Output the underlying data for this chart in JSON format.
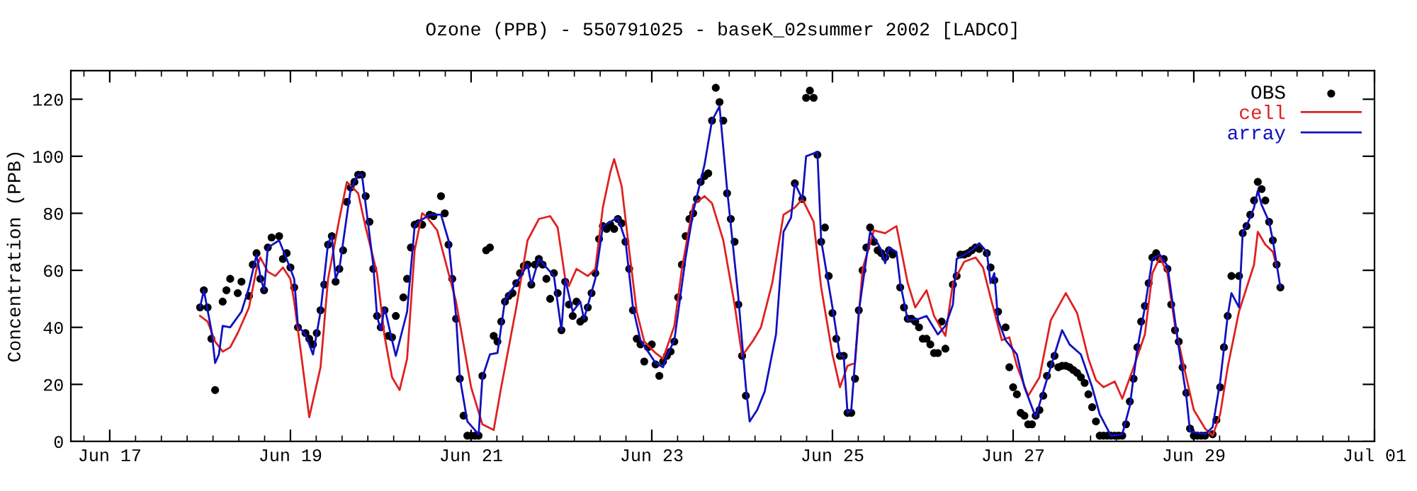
{
  "chart_data": {
    "type": "line",
    "title": "Ozone (PPB) - 550791025 - baseK_02summer 2002 [LADCO]",
    "ylabel": "Concentration (PPB)",
    "xlim": [
      "2002-06-16T13:40",
      "2002-07-01T00:00"
    ],
    "ylim": [
      0,
      130
    ],
    "xticks": [
      {
        "value": "2002-06-17",
        "label": "Jun 17"
      },
      {
        "value": "2002-06-19",
        "label": "Jun 19"
      },
      {
        "value": "2002-06-21",
        "label": "Jun 21"
      },
      {
        "value": "2002-06-23",
        "label": "Jun 23"
      },
      {
        "value": "2002-06-25",
        "label": "Jun 25"
      },
      {
        "value": "2002-06-27",
        "label": "Jun 27"
      },
      {
        "value": "2002-06-29",
        "label": "Jun 29"
      },
      {
        "value": "2002-07-01",
        "label": "Jul 01"
      }
    ],
    "yticks": [
      0,
      20,
      40,
      60,
      80,
      100,
      120
    ],
    "legend": "top right",
    "series": [
      {
        "name": "OBS",
        "type": "scatter",
        "marker": "circle",
        "color": "#000000",
        "x": [
          "2002-06-18T00:00",
          "2002-06-18T01:00",
          "2002-06-18T02:00",
          "2002-06-18T03:00",
          "2002-06-18T04:00",
          "2002-06-18T06:00",
          "2002-06-18T07:00",
          "2002-06-18T08:00",
          "2002-06-18T10:00",
          "2002-06-18T11:00",
          "2002-06-18T13:00",
          "2002-06-18T14:00",
          "2002-06-18T15:00",
          "2002-06-18T16:00",
          "2002-06-18T17:00",
          "2002-06-18T18:00",
          "2002-06-18T19:00",
          "2002-06-18T21:00",
          "2002-06-18T22:00",
          "2002-06-18T23:00",
          "2002-06-19T00:00",
          "2002-06-19T01:00",
          "2002-06-19T02:00",
          "2002-06-19T04:00",
          "2002-06-19T05:00",
          "2002-06-19T06:00",
          "2002-06-19T07:00",
          "2002-06-19T08:00",
          "2002-06-19T09:00",
          "2002-06-19T10:00",
          "2002-06-19T11:00",
          "2002-06-19T12:00",
          "2002-06-19T13:00",
          "2002-06-19T14:00",
          "2002-06-19T15:00",
          "2002-06-19T16:00",
          "2002-06-19T17:00",
          "2002-06-19T18:00",
          "2002-06-19T19:00",
          "2002-06-19T20:00",
          "2002-06-19T21:00",
          "2002-06-19T22:00",
          "2002-06-19T23:00",
          "2002-06-20T00:00",
          "2002-06-20T01:00",
          "2002-06-20T02:00",
          "2002-06-20T03:00",
          "2002-06-20T04:00",
          "2002-06-20T06:00",
          "2002-06-20T07:00",
          "2002-06-20T08:00",
          "2002-06-20T09:00",
          "2002-06-20T10:00",
          "2002-06-20T11:00",
          "2002-06-20T13:00",
          "2002-06-20T14:00",
          "2002-06-20T16:00",
          "2002-06-20T17:00",
          "2002-06-20T18:00",
          "2002-06-20T19:00",
          "2002-06-20T20:00",
          "2002-06-20T21:00",
          "2002-06-20T22:00",
          "2002-06-20T23:00",
          "2002-06-21T00:00",
          "2002-06-21T01:00",
          "2002-06-21T02:00",
          "2002-06-21T03:00",
          "2002-06-21T04:00",
          "2002-06-21T05:00",
          "2002-06-21T06:00",
          "2002-06-21T07:00",
          "2002-06-21T08:00",
          "2002-06-21T09:00",
          "2002-06-21T10:00",
          "2002-06-21T11:00",
          "2002-06-21T12:00",
          "2002-06-21T13:00",
          "2002-06-21T14:00",
          "2002-06-21T15:00",
          "2002-06-21T16:00",
          "2002-06-21T17:00",
          "2002-06-21T18:00",
          "2002-06-21T19:00",
          "2002-06-21T20:00",
          "2002-06-21T21:00",
          "2002-06-21T22:00",
          "2002-06-21T23:00",
          "2002-06-22T00:00",
          "2002-06-22T01:00",
          "2002-06-22T02:00",
          "2002-06-22T03:00",
          "2002-06-22T04:00",
          "2002-06-22T05:00",
          "2002-06-22T06:00",
          "2002-06-22T07:00",
          "2002-06-22T08:00",
          "2002-06-22T09:00",
          "2002-06-22T10:00",
          "2002-06-22T11:00",
          "2002-06-22T12:00",
          "2002-06-22T13:00",
          "2002-06-22T14:00",
          "2002-06-22T15:00",
          "2002-06-22T16:00",
          "2002-06-22T17:00",
          "2002-06-22T18:00",
          "2002-06-22T19:00",
          "2002-06-22T20:00",
          "2002-06-22T21:00",
          "2002-06-22T22:00",
          "2002-06-22T23:00",
          "2002-06-23T00:00",
          "2002-06-23T01:00",
          "2002-06-23T02:00",
          "2002-06-23T03:00",
          "2002-06-23T04:00",
          "2002-06-23T05:00",
          "2002-06-23T06:00",
          "2002-06-23T07:00",
          "2002-06-23T08:00",
          "2002-06-23T09:00",
          "2002-06-23T10:00",
          "2002-06-23T11:00",
          "2002-06-23T12:00",
          "2002-06-23T13:00",
          "2002-06-23T14:00",
          "2002-06-23T15:00",
          "2002-06-23T16:00",
          "2002-06-23T17:00",
          "2002-06-23T18:00",
          "2002-06-23T19:00",
          "2002-06-23T20:00",
          "2002-06-23T21:00",
          "2002-06-23T22:00",
          "2002-06-23T23:00",
          "2002-06-24T00:00",
          "2002-06-24T01:00",
          "2002-06-24T14:00",
          "2002-06-24T16:00",
          "2002-06-24T17:00",
          "2002-06-24T18:00",
          "2002-06-24T19:00",
          "2002-06-24T20:00",
          "2002-06-24T21:00",
          "2002-06-24T22:00",
          "2002-06-24T23:00",
          "2002-06-25T00:00",
          "2002-06-25T01:00",
          "2002-06-25T02:00",
          "2002-06-25T03:00",
          "2002-06-25T04:00",
          "2002-06-25T05:00",
          "2002-06-25T06:00",
          "2002-06-25T07:00",
          "2002-06-25T08:00",
          "2002-06-25T09:00",
          "2002-06-25T10:00",
          "2002-06-25T11:00",
          "2002-06-25T12:00",
          "2002-06-25T13:00",
          "2002-06-25T14:00",
          "2002-06-25T15:00",
          "2002-06-25T16:00",
          "2002-06-25T18:00",
          "2002-06-25T19:00",
          "2002-06-25T20:00",
          "2002-06-25T21:00",
          "2002-06-25T22:00",
          "2002-06-25T23:00",
          "2002-06-26T00:00",
          "2002-06-26T01:00",
          "2002-06-26T02:00",
          "2002-06-26T03:00",
          "2002-06-26T04:00",
          "2002-06-26T05:00",
          "2002-06-26T06:00",
          "2002-06-26T08:00",
          "2002-06-26T09:00",
          "2002-06-26T10:00",
          "2002-06-26T11:00",
          "2002-06-26T12:00",
          "2002-06-26T13:00",
          "2002-06-26T14:00",
          "2002-06-26T15:00",
          "2002-06-26T17:00",
          "2002-06-26T18:00",
          "2002-06-26T19:00",
          "2002-06-26T20:00",
          "2002-06-26T22:00",
          "2002-06-26T23:00",
          "2002-06-27T00:00",
          "2002-06-27T01:00",
          "2002-06-27T02:00",
          "2002-06-27T03:00",
          "2002-06-27T04:00",
          "2002-06-27T05:00",
          "2002-06-27T06:00",
          "2002-06-27T07:00",
          "2002-06-27T08:00",
          "2002-06-27T09:00",
          "2002-06-27T10:00",
          "2002-06-27T11:00",
          "2002-06-27T12:00",
          "2002-06-27T13:00",
          "2002-06-27T14:00",
          "2002-06-27T15:00",
          "2002-06-27T16:00",
          "2002-06-27T17:00",
          "2002-06-27T18:00",
          "2002-06-27T19:00",
          "2002-06-27T20:00",
          "2002-06-27T21:00",
          "2002-06-27T22:00",
          "2002-06-27T23:00",
          "2002-06-28T00:00",
          "2002-06-28T01:00",
          "2002-06-28T02:00",
          "2002-06-28T03:00",
          "2002-06-28T04:00",
          "2002-06-28T05:00",
          "2002-06-28T06:00",
          "2002-06-28T07:00",
          "2002-06-28T08:00",
          "2002-06-28T09:00",
          "2002-06-28T10:00",
          "2002-06-28T11:00",
          "2002-06-28T12:00",
          "2002-06-28T13:00",
          "2002-06-28T14:00",
          "2002-06-28T15:00",
          "2002-06-28T16:00",
          "2002-06-28T17:00",
          "2002-06-28T18:00",
          "2002-06-28T19:00",
          "2002-06-28T20:00",
          "2002-06-28T21:00",
          "2002-06-28T22:00",
          "2002-06-28T23:00",
          "2002-06-29T00:00",
          "2002-06-29T01:00",
          "2002-06-29T02:00",
          "2002-06-29T03:00",
          "2002-06-29T05:00",
          "2002-06-29T06:00",
          "2002-06-29T07:00",
          "2002-06-29T08:00",
          "2002-06-29T09:00",
          "2002-06-29T10:00",
          "2002-06-29T12:00",
          "2002-06-29T13:00",
          "2002-06-29T14:00",
          "2002-06-29T15:00",
          "2002-06-29T16:00",
          "2002-06-29T17:00",
          "2002-06-29T18:00",
          "2002-06-29T19:00",
          "2002-06-29T20:00",
          "2002-06-29T21:00",
          "2002-06-29T22:00",
          "2002-06-29T23:00"
        ],
        "values": [
          47,
          53,
          47,
          36,
          18,
          49,
          53,
          57,
          52,
          56,
          51,
          62,
          66,
          57,
          53,
          68,
          71.5,
          72,
          64,
          66,
          61,
          54,
          40,
          38,
          36,
          34,
          38,
          46,
          55,
          69,
          72,
          56,
          60.5,
          67,
          84,
          89,
          91,
          93.5,
          93.5,
          86,
          77,
          60.5,
          44,
          40,
          46,
          37,
          36.5,
          44,
          50.5,
          57,
          68,
          76,
          76.5,
          76,
          79.5,
          79,
          86,
          80,
          69,
          57,
          43,
          22,
          9,
          2,
          2,
          2,
          2,
          23,
          67,
          68,
          37,
          35,
          42,
          49,
          51,
          52,
          55.5,
          59,
          61.5,
          62,
          55,
          62,
          64,
          62,
          57,
          50,
          59,
          52,
          39,
          56,
          48,
          44,
          49,
          42,
          43,
          47,
          52,
          59,
          71,
          75.5,
          74.5,
          76,
          74.5,
          78,
          76.5,
          70,
          60.5,
          46,
          36,
          34,
          28,
          33,
          34,
          27,
          23,
          28,
          30,
          31.5,
          35,
          50.5,
          62,
          72,
          78,
          80,
          85,
          91,
          93,
          94,
          112.5,
          124,
          119,
          112.5,
          87,
          78,
          70,
          48,
          30,
          16,
          90.5,
          85,
          120.5,
          123,
          120.5,
          100.5,
          70,
          75,
          58,
          45,
          36,
          30,
          30,
          10,
          10,
          22,
          46,
          60,
          68,
          75,
          70,
          67,
          66,
          64.5,
          67,
          65.5,
          54,
          47,
          43,
          43,
          42,
          40,
          36,
          36,
          34,
          31,
          31,
          42,
          32.5,
          55,
          58,
          65.5,
          65.5,
          66,
          67,
          68,
          67.5,
          66,
          61,
          56.5,
          45.5,
          40,
          26,
          19,
          16.5,
          10,
          9,
          6,
          6,
          9,
          11,
          16,
          23,
          27,
          30,
          26,
          26.5,
          26.5,
          26,
          25,
          24,
          22.5,
          20.5,
          16.5,
          12,
          7,
          2,
          2,
          2,
          2,
          2,
          2,
          2,
          6,
          14,
          22,
          33,
          42,
          47.5,
          55.5,
          64.5,
          66,
          64,
          64,
          60.5,
          48,
          39,
          35,
          26,
          17,
          4.5,
          2,
          2,
          2,
          2,
          2.5,
          7.5,
          19,
          33,
          44,
          58,
          58,
          73,
          75.5,
          79.5,
          84.5,
          91,
          88.5,
          84.5,
          77,
          70.5,
          62,
          54
        ]
      },
      {
        "name": "cell",
        "color": "#e02020",
        "x": [
          "2002-06-18T00:00",
          "2002-06-18T02:00",
          "2002-06-18T04:00",
          "2002-06-18T06:00",
          "2002-06-18T08:00",
          "2002-06-18T10:00",
          "2002-06-18T13:00",
          "2002-06-18T15:00",
          "2002-06-18T16:00",
          "2002-06-18T18:00",
          "2002-06-18T20:00",
          "2002-06-18T22:00",
          "2002-06-19T00:00",
          "2002-06-19T01:00",
          "2002-06-19T03:00",
          "2002-06-19T05:00",
          "2002-06-19T08:00",
          "2002-06-19T10:00",
          "2002-06-19T13:00",
          "2002-06-19T15:00",
          "2002-06-19T18:00",
          "2002-06-19T20:00",
          "2002-06-19T23:00",
          "2002-06-20T01:00",
          "2002-06-20T03:00",
          "2002-06-20T05:00",
          "2002-06-20T07:00",
          "2002-06-20T09:00",
          "2002-06-20T11:00",
          "2002-06-20T12:00",
          "2002-06-20T15:00",
          "2002-06-20T17:00",
          "2002-06-20T20:00",
          "2002-06-20T22:00",
          "2002-06-21T00:00",
          "2002-06-21T03:00",
          "2002-06-21T06:00",
          "2002-06-21T08:00",
          "2002-06-21T12:00",
          "2002-06-21T15:00",
          "2002-06-21T18:00",
          "2002-06-21T21:00",
          "2002-06-21T23:00",
          "2002-06-22T01:00",
          "2002-06-22T02:00",
          "2002-06-22T04:00",
          "2002-06-22T07:00",
          "2002-06-22T09:00",
          "2002-06-22T11:00",
          "2002-06-22T13:00",
          "2002-06-22T14:00",
          "2002-06-22T16:00",
          "2002-06-22T18:00",
          "2002-06-22T20:00",
          "2002-06-22T22:00",
          "2002-06-23T01:00",
          "2002-06-23T03:00",
          "2002-06-23T06:00",
          "2002-06-23T08:00",
          "2002-06-23T11:00",
          "2002-06-23T14:00",
          "2002-06-23T16:00",
          "2002-06-23T19:00",
          "2002-06-23T22:00",
          "2002-06-24T00:00",
          "2002-06-24T03:00",
          "2002-06-24T05:00",
          "2002-06-24T08:00",
          "2002-06-24T11:00",
          "2002-06-24T14:00",
          "2002-06-24T16:00",
          "2002-06-24T19:00",
          "2002-06-24T21:00",
          "2002-06-25T00:00",
          "2002-06-25T02:00",
          "2002-06-25T04:00",
          "2002-06-25T06:00",
          "2002-06-25T08:00",
          "2002-06-25T11:00",
          "2002-06-25T14:00",
          "2002-06-25T17:00",
          "2002-06-25T20:00",
          "2002-06-25T22:00",
          "2002-06-26T01:00",
          "2002-06-26T03:00",
          "2002-06-26T06:00",
          "2002-06-26T08:00",
          "2002-06-26T11:00",
          "2002-06-26T14:00",
          "2002-06-26T16:00",
          "2002-06-26T18:00",
          "2002-06-26T21:00",
          "2002-06-26T23:00",
          "2002-06-27T01:00",
          "2002-06-27T04:00",
          "2002-06-27T07:00",
          "2002-06-27T10:00",
          "2002-06-27T14:00",
          "2002-06-27T17:00",
          "2002-06-27T20:00",
          "2002-06-27T22:00",
          "2002-06-28T00:00",
          "2002-06-28T03:00",
          "2002-06-28T05:00",
          "2002-06-28T08:00",
          "2002-06-28T11:00",
          "2002-06-28T13:00",
          "2002-06-28T15:00",
          "2002-06-28T17:00",
          "2002-06-28T19:00",
          "2002-06-28T22:00",
          "2002-06-29T00:00",
          "2002-06-29T03:00",
          "2002-06-29T05:00",
          "2002-06-29T07:00",
          "2002-06-29T09:00",
          "2002-06-29T12:00",
          "2002-06-29T16:00",
          "2002-06-29T17:00",
          "2002-06-29T19:00",
          "2002-06-29T21:00",
          "2002-06-29T22:00"
        ],
        "values": [
          44,
          42,
          35,
          31.5,
          33,
          38,
          47,
          60.5,
          64.5,
          59.5,
          58,
          61,
          57,
          49,
          29,
          8.5,
          26,
          57,
          78,
          91,
          87,
          75,
          59,
          37,
          22.5,
          18,
          29,
          67,
          80,
          79,
          74,
          64,
          49,
          34,
          19,
          6,
          4,
          19,
          47,
          70.5,
          78,
          79,
          75,
          57,
          54.5,
          60.5,
          58,
          60.5,
          82,
          94.5,
          99,
          89.5,
          67,
          45.5,
          35,
          31,
          29,
          40.5,
          60.5,
          83,
          86,
          83.5,
          70.5,
          48,
          30,
          35.5,
          40,
          55.5,
          79.5,
          82,
          85,
          77,
          54,
          30.5,
          19,
          26.5,
          27.5,
          60.5,
          74,
          73,
          75.5,
          55.5,
          47,
          53,
          44,
          37,
          55.5,
          63,
          64.5,
          61,
          50.5,
          35.5,
          36.5,
          26.5,
          16,
          22.5,
          42.5,
          52,
          45,
          29,
          21.5,
          19,
          21,
          15,
          26,
          37.5,
          59,
          64.5,
          59,
          40.5,
          22.5,
          11,
          4.5,
          2,
          9.5,
          26,
          45.5,
          62,
          73.5,
          69,
          66.5,
          61.5
        ]
      },
      {
        "name": "array",
        "color": "#1010c0",
        "x": [
          "2002-06-18T00:00",
          "2002-06-18T01:00",
          "2002-06-18T03:00",
          "2002-06-18T04:00",
          "2002-06-18T05:00",
          "2002-06-18T06:00",
          "2002-06-18T08:00",
          "2002-06-18T11:00",
          "2002-06-18T13:00",
          "2002-06-18T15:00",
          "2002-06-18T16:00",
          "2002-06-18T17:00",
          "2002-06-18T18:00",
          "2002-06-18T21:00",
          "2002-06-18T23:00",
          "2002-06-19T01:00",
          "2002-06-19T02:00",
          "2002-06-19T04:00",
          "2002-06-19T06:00",
          "2002-06-19T08:00",
          "2002-06-19T10:00",
          "2002-06-19T11:00",
          "2002-06-19T12:00",
          "2002-06-19T13:00",
          "2002-06-19T16:00",
          "2002-06-19T18:00",
          "2002-06-19T19:00",
          "2002-06-19T22:00",
          "2002-06-19T23:00",
          "2002-06-20T00:00",
          "2002-06-20T01:00",
          "2002-06-20T03:00",
          "2002-06-20T04:00",
          "2002-06-20T07:00",
          "2002-06-20T09:00",
          "2002-06-20T10:00",
          "2002-06-20T13:00",
          "2002-06-20T16:00",
          "2002-06-20T18:00",
          "2002-06-20T20:00",
          "2002-06-20T21:00",
          "2002-06-20T23:00",
          "2002-06-21T02:00",
          "2002-06-21T03:00",
          "2002-06-21T05:00",
          "2002-06-21T07:00",
          "2002-06-21T09:00",
          "2002-06-21T12:00",
          "2002-06-21T15:00",
          "2002-06-21T16:00",
          "2002-06-21T18:00",
          "2002-06-21T22:00",
          "2002-06-22T00:00",
          "2002-06-22T01:00",
          "2002-06-22T03:00",
          "2002-06-22T05:00",
          "2002-06-22T06:00",
          "2002-06-22T09:00",
          "2002-06-22T11:00",
          "2002-06-22T13:00",
          "2002-06-22T15:00",
          "2002-06-22T17:00",
          "2002-06-22T19:00",
          "2002-06-22T21:00",
          "2002-06-23T01:00",
          "2002-06-23T03:00",
          "2002-06-23T04:00",
          "2002-06-23T06:00",
          "2002-06-23T09:00",
          "2002-06-23T11:00",
          "2002-06-23T14:00",
          "2002-06-23T16:00",
          "2002-06-23T18:00",
          "2002-06-23T20:00",
          "2002-06-23T23:00",
          "2002-06-24T01:00",
          "2002-06-24T02:00",
          "2002-06-24T04:00",
          "2002-06-24T06:00",
          "2002-06-24T09:00",
          "2002-06-24T11:00",
          "2002-06-24T13:00",
          "2002-06-24T14:00",
          "2002-06-24T16:00",
          "2002-06-24T17:00",
          "2002-06-24T20:00",
          "2002-06-24T21:00",
          "2002-06-25T00:00",
          "2002-06-25T02:00",
          "2002-06-25T03:00",
          "2002-06-25T04:00",
          "2002-06-25T05:00",
          "2002-06-25T07:00",
          "2002-06-25T10:00",
          "2002-06-25T12:00",
          "2002-06-25T13:00",
          "2002-06-25T14:00",
          "2002-06-25T15:00",
          "2002-06-25T17:00",
          "2002-06-25T18:00",
          "2002-06-25T20:00",
          "2002-06-25T23:00",
          "2002-06-26T01:00",
          "2002-06-26T04:00",
          "2002-06-26T06:00",
          "2002-06-26T08:00",
          "2002-06-26T09:00",
          "2002-06-26T13:00",
          "2002-06-26T15:00",
          "2002-06-26T17:00",
          "2002-06-26T18:00",
          "2002-06-26T19:00",
          "2002-06-26T20:00",
          "2002-06-26T22:00",
          "2002-06-27T01:00",
          "2002-06-27T03:00",
          "2002-06-27T06:00",
          "2002-06-27T08:00",
          "2002-06-27T11:00",
          "2002-06-27T13:00",
          "2002-06-27T15:00",
          "2002-06-27T18:00",
          "2002-06-27T21:00",
          "2002-06-27T23:00",
          "2002-06-28T02:00",
          "2002-06-28T05:00",
          "2002-06-28T07:00",
          "2002-06-28T09:00",
          "2002-06-28T11:00",
          "2002-06-28T13:00",
          "2002-06-28T15:00",
          "2002-06-28T17:00",
          "2002-06-28T19:00",
          "2002-06-28T20:00",
          "2002-06-28T22:00",
          "2002-06-28T23:00",
          "2002-06-29T03:00",
          "2002-06-29T05:00",
          "2002-06-29T07:00",
          "2002-06-29T09:00",
          "2002-06-29T10:00",
          "2002-06-29T12:00",
          "2002-06-29T13:00",
          "2002-06-29T14:00",
          "2002-06-29T16:00",
          "2002-06-29T17:00",
          "2002-06-29T18:00",
          "2002-06-29T20:00",
          "2002-06-29T21:00",
          "2002-06-29T23:00"
        ],
        "values": [
          47,
          53,
          39,
          27.5,
          30.5,
          40.5,
          40,
          45.5,
          54,
          65.5,
          58,
          53,
          68,
          70.5,
          64,
          57,
          40.5,
          37.5,
          30.5,
          45.5,
          69.5,
          72,
          57,
          60.5,
          88.5,
          93.5,
          93.5,
          62,
          44,
          39,
          47,
          35.5,
          30,
          45.5,
          75.5,
          77,
          79.5,
          79.5,
          70.5,
          44,
          22.5,
          7,
          2.5,
          22.5,
          30.5,
          31,
          49.5,
          55.5,
          62,
          55,
          64,
          58,
          39,
          57,
          45.5,
          49,
          43,
          57,
          75.5,
          77,
          78.5,
          70.5,
          47,
          35.5,
          27.5,
          26,
          30,
          35.5,
          64.5,
          80.5,
          97,
          112.5,
          117.5,
          88.5,
          50.5,
          19,
          7,
          11,
          17.5,
          37.5,
          73.5,
          78.5,
          90.5,
          85,
          100,
          101.5,
          70.5,
          47,
          30,
          30,
          10,
          11,
          45.5,
          73.5,
          69.5,
          67,
          62.5,
          68,
          66.5,
          55.5,
          42.5,
          43,
          44,
          37.5,
          40.5,
          48,
          64,
          67,
          69.5,
          66.5,
          55.5,
          59,
          42.5,
          35.5,
          30.5,
          19,
          8.5,
          17.5,
          30.5,
          39,
          34,
          30.5,
          19,
          9.5,
          2,
          2.5,
          12.5,
          32.5,
          47,
          64,
          65.5,
          61.5,
          42.5,
          33,
          16,
          3.5,
          2.5,
          5,
          21,
          44,
          52,
          47,
          73.5,
          75.5,
          82,
          88,
          83,
          77,
          70.5,
          54
        ]
      }
    ]
  }
}
